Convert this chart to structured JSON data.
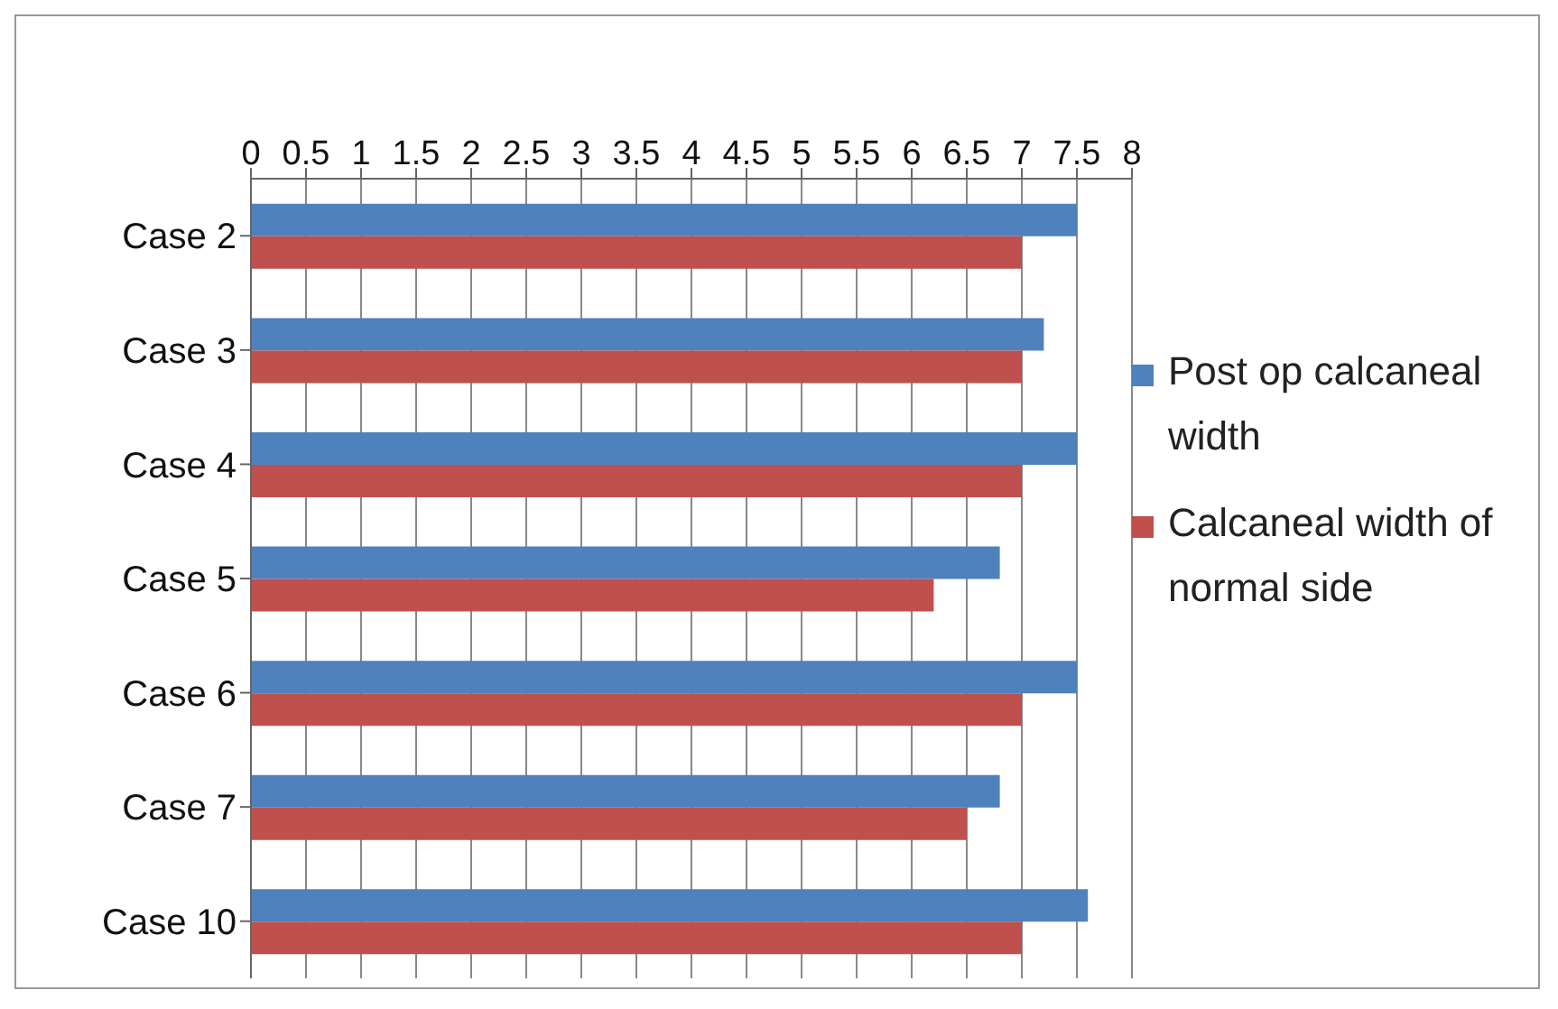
{
  "chart_data": {
    "type": "bar",
    "orientation": "horizontal",
    "categories": [
      "Case 2",
      "Case 3",
      "Case 4",
      "Case 5",
      "Case 6",
      "Case 7",
      "Case 10"
    ],
    "series": [
      {
        "name": "Post op calcaneal width",
        "color": "#4f81bd",
        "values": [
          7.5,
          7.2,
          7.5,
          6.8,
          7.5,
          6.8,
          7.6
        ]
      },
      {
        "name": "Calcaneal width of normal side",
        "color": "#c0504d",
        "values": [
          7,
          7,
          7,
          6.2,
          7,
          6.5,
          7
        ]
      }
    ],
    "xlim": [
      0,
      8
    ],
    "xticks": [
      0,
      0.5,
      1,
      1.5,
      2,
      2.5,
      3,
      3.5,
      4,
      4.5,
      5,
      5.5,
      6,
      6.5,
      7,
      7.5,
      8
    ],
    "grid": "x",
    "legend": "right"
  }
}
